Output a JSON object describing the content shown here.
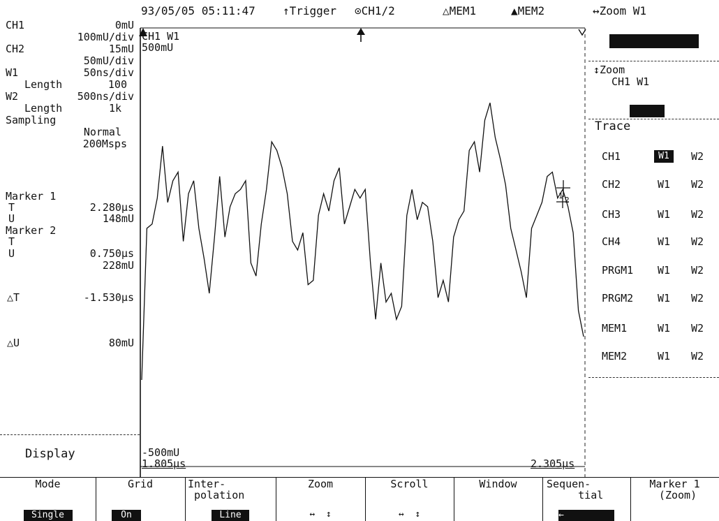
{
  "status_bar": {
    "timestamp": "93/05/05 05:11:47",
    "trigger": "↑Trigger",
    "ch_ratio": "⊙CH1/2",
    "mem1": "△MEM1",
    "mem2": "▲MEM2",
    "zoom": "↔Zoom W1"
  },
  "left_panel": {
    "ch1": {
      "label": "CH1",
      "offset": "0mU",
      "scale": "100mU/div"
    },
    "ch2": {
      "label": "CH2",
      "offset": "15mU",
      "scale": "50mU/div"
    },
    "w1": {
      "label": "W1",
      "timebase": "50ns/div",
      "length_label": "Length",
      "length": "100"
    },
    "w2": {
      "label": "W2",
      "timebase": "500ns/div",
      "length_label": "Length",
      "length": "1k"
    },
    "sampling": {
      "label": "Sampling",
      "mode": "Normal",
      "rate": "200Msps"
    },
    "marker1": {
      "label": "Marker 1",
      "t_label": "T",
      "t": "2.280µs",
      "v_label": "U",
      "v": "148mU"
    },
    "marker2": {
      "label": "Marker 2",
      "t_label": "T",
      "t": "0.750µs",
      "v_label": "U",
      "v": "228mU"
    },
    "delta_t": {
      "label": "△T",
      "value": "-1.530µs"
    },
    "delta_v": {
      "label": "△U",
      "value": "80mU"
    },
    "display_label": "Display"
  },
  "graph": {
    "title": "CH1 W1",
    "top_value": "500mU",
    "bottom_value": "-500mU",
    "x_start": "1.805µs",
    "x_end": "2.305µs",
    "trace_points_v": [
      -0.3,
      0.05,
      0.06,
      0.12,
      0.24,
      0.11,
      0.16,
      0.18,
      0.02,
      0.13,
      0.16,
      0.05,
      -0.02,
      -0.1,
      0.03,
      0.17,
      0.03,
      0.1,
      0.13,
      0.14,
      0.16,
      -0.03,
      -0.06,
      0.06,
      0.14,
      0.25,
      0.23,
      0.19,
      0.13,
      0.02,
      0.0,
      0.04,
      -0.08,
      -0.07,
      0.08,
      0.13,
      0.09,
      0.16,
      0.19,
      0.06,
      0.1,
      0.14,
      0.12,
      0.14,
      -0.03,
      -0.16,
      -0.03,
      -0.12,
      -0.1,
      -0.16,
      -0.13,
      0.08,
      0.14,
      0.07,
      0.11,
      0.1,
      0.02,
      -0.11,
      -0.07,
      -0.12,
      0.03,
      0.07,
      0.09,
      0.23,
      0.25,
      0.18,
      0.3,
      0.34,
      0.26,
      0.21,
      0.15,
      0.05,
      0.0,
      -0.05,
      -0.11,
      0.05,
      0.08,
      0.11,
      0.17,
      0.18,
      0.12,
      0.14,
      0.1,
      0.04,
      -0.14,
      -0.2
    ],
    "marker_labels": [
      "1",
      "2"
    ]
  },
  "right_panel": {
    "zoom_label": "↕Zoom",
    "zoom_value": "CH1 W1",
    "trace_label": "Trace",
    "rows": [
      {
        "name": "CH1",
        "w1": "W1",
        "w2": "W2",
        "w1_selected": true
      },
      {
        "name": "CH2",
        "w1": "W1",
        "w2": "W2",
        "w1_selected": false
      },
      {
        "name": "CH3",
        "w1": "W1",
        "w2": "W2",
        "w1_selected": false
      },
      {
        "name": "CH4",
        "w1": "W1",
        "w2": "W2",
        "w1_selected": false
      },
      {
        "name": "PRGM1",
        "w1": "W1",
        "w2": "W2",
        "w1_selected": false
      },
      {
        "name": "PRGM2",
        "w1": "W1",
        "w2": "W2",
        "w1_selected": false
      },
      {
        "name": "MEM1",
        "w1": "W1",
        "w2": "W2",
        "w1_selected": false
      },
      {
        "name": "MEM2",
        "w1": "W1",
        "w2": "W2",
        "w1_selected": false
      }
    ]
  },
  "softkeys": [
    {
      "label": "Mode",
      "value": "Single",
      "inverted": true
    },
    {
      "label": "Grid",
      "value": "On",
      "inverted": true
    },
    {
      "label": "Inter-\n polation",
      "value": "Line",
      "inverted": true
    },
    {
      "label": "Zoom",
      "value": "↔  ↕",
      "inverted": false
    },
    {
      "label": "Scroll",
      "value": "↔  ↕",
      "inverted": false
    },
    {
      "label": "Window",
      "value": "",
      "inverted": false
    },
    {
      "label": "Sequen-\n     tial",
      "value": "←",
      "inverted": true
    },
    {
      "label": "Marker 1\n (Zoom)",
      "value": "",
      "inverted": false
    }
  ]
}
